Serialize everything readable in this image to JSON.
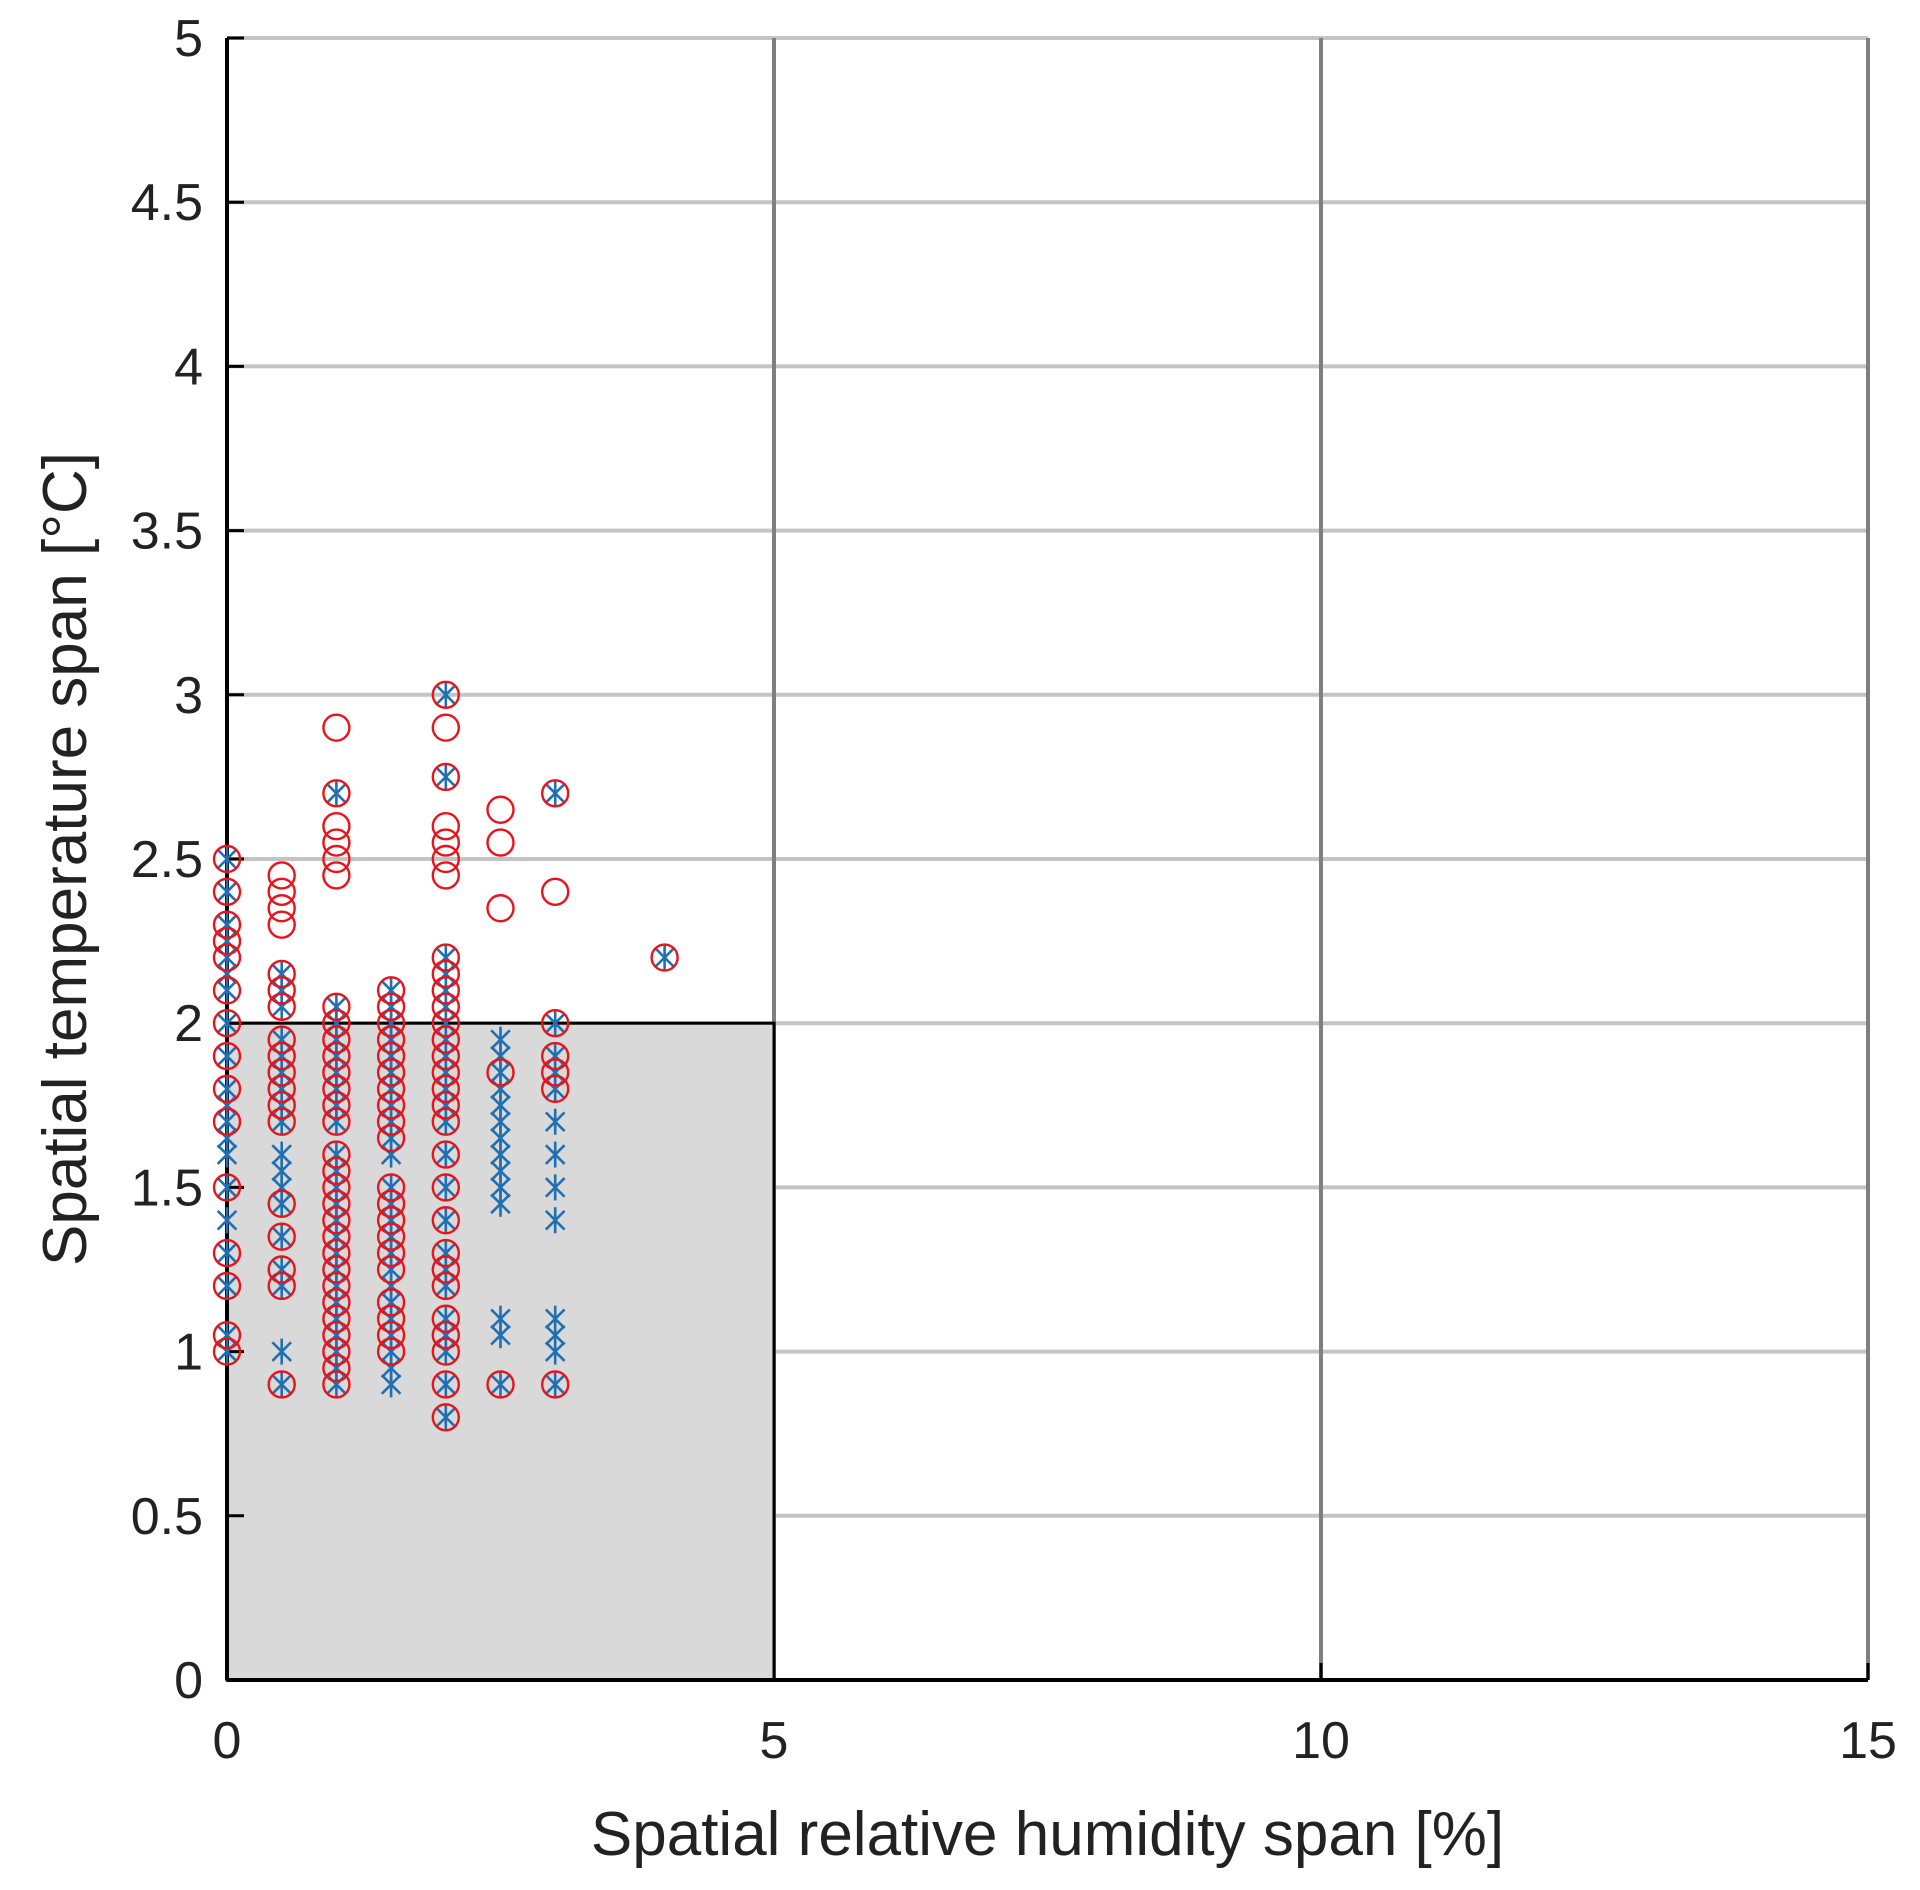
{
  "chart_data": {
    "type": "scatter",
    "title": "",
    "xlabel": "Spatial relative humidity span [%]",
    "ylabel": "Spatial temperature span [°C]",
    "xlim": [
      0,
      15
    ],
    "ylim": [
      0,
      5
    ],
    "x_ticks": [
      0,
      5,
      10,
      15
    ],
    "y_ticks": [
      0,
      0.5,
      1,
      1.5,
      2,
      2.5,
      3,
      3.5,
      4,
      4.5,
      5
    ],
    "x_tick_labels": [
      "0",
      "5",
      "10",
      "15"
    ],
    "y_tick_labels": [
      "0",
      "0.5",
      "1",
      "1.5",
      "2",
      "2.5",
      "3",
      "3.5",
      "4",
      "4.5",
      "5"
    ],
    "grid": true,
    "legend": "none",
    "comfort_region": {
      "x": [
        0,
        5
      ],
      "y": [
        0,
        2
      ],
      "fill": "#d9d9d9",
      "edge": "#000000"
    },
    "series": [
      {
        "marker": "star",
        "color": "#1f6fb2",
        "points": [
          [
            0,
            1.0
          ],
          [
            0,
            1.05
          ],
          [
            0,
            1.2
          ],
          [
            0,
            1.3
          ],
          [
            0,
            1.4
          ],
          [
            0,
            1.5
          ],
          [
            0,
            1.6
          ],
          [
            0,
            1.65
          ],
          [
            0,
            1.7
          ],
          [
            0,
            1.75
          ],
          [
            0,
            1.8
          ],
          [
            0,
            1.9
          ],
          [
            0,
            2.0
          ],
          [
            0,
            2.1
          ],
          [
            0,
            2.15
          ],
          [
            0,
            2.2
          ],
          [
            0,
            2.25
          ],
          [
            0,
            2.3
          ],
          [
            0,
            2.4
          ],
          [
            0,
            2.5
          ],
          [
            0.5,
            0.9
          ],
          [
            0.5,
            1.0
          ],
          [
            0.5,
            1.2
          ],
          [
            0.5,
            1.25
          ],
          [
            0.5,
            1.35
          ],
          [
            0.5,
            1.45
          ],
          [
            0.5,
            1.5
          ],
          [
            0.5,
            1.55
          ],
          [
            0.5,
            1.6
          ],
          [
            0.5,
            1.7
          ],
          [
            0.5,
            1.75
          ],
          [
            0.5,
            1.8
          ],
          [
            0.5,
            1.85
          ],
          [
            0.5,
            1.9
          ],
          [
            0.5,
            1.95
          ],
          [
            0.5,
            2.05
          ],
          [
            0.5,
            2.1
          ],
          [
            0.5,
            2.15
          ],
          [
            1,
            0.9
          ],
          [
            1,
            0.95
          ],
          [
            1,
            1.0
          ],
          [
            1,
            1.05
          ],
          [
            1,
            1.1
          ],
          [
            1,
            1.15
          ],
          [
            1,
            1.2
          ],
          [
            1,
            1.25
          ],
          [
            1,
            1.3
          ],
          [
            1,
            1.35
          ],
          [
            1,
            1.4
          ],
          [
            1,
            1.45
          ],
          [
            1,
            1.5
          ],
          [
            1,
            1.55
          ],
          [
            1,
            1.6
          ],
          [
            1,
            1.7
          ],
          [
            1,
            1.75
          ],
          [
            1,
            1.8
          ],
          [
            1,
            1.85
          ],
          [
            1,
            1.9
          ],
          [
            1,
            1.95
          ],
          [
            1,
            2.0
          ],
          [
            1,
            2.05
          ],
          [
            1,
            2.7
          ],
          [
            1.5,
            0.9
          ],
          [
            1.5,
            0.95
          ],
          [
            1.5,
            1.0
          ],
          [
            1.5,
            1.05
          ],
          [
            1.5,
            1.1
          ],
          [
            1.5,
            1.15
          ],
          [
            1.5,
            1.2
          ],
          [
            1.5,
            1.25
          ],
          [
            1.5,
            1.3
          ],
          [
            1.5,
            1.35
          ],
          [
            1.5,
            1.4
          ],
          [
            1.5,
            1.45
          ],
          [
            1.5,
            1.5
          ],
          [
            1.5,
            1.6
          ],
          [
            1.5,
            1.65
          ],
          [
            1.5,
            1.7
          ],
          [
            1.5,
            1.75
          ],
          [
            1.5,
            1.8
          ],
          [
            1.5,
            1.85
          ],
          [
            1.5,
            1.9
          ],
          [
            1.5,
            1.95
          ],
          [
            1.5,
            2.0
          ],
          [
            1.5,
            2.05
          ],
          [
            1.5,
            2.1
          ],
          [
            2,
            0.8
          ],
          [
            2,
            0.9
          ],
          [
            2,
            1.0
          ],
          [
            2,
            1.05
          ],
          [
            2,
            1.1
          ],
          [
            2,
            1.2
          ],
          [
            2,
            1.25
          ],
          [
            2,
            1.3
          ],
          [
            2,
            1.4
          ],
          [
            2,
            1.5
          ],
          [
            2,
            1.6
          ],
          [
            2,
            1.7
          ],
          [
            2,
            1.75
          ],
          [
            2,
            1.8
          ],
          [
            2,
            1.85
          ],
          [
            2,
            1.9
          ],
          [
            2,
            1.95
          ],
          [
            2,
            2.0
          ],
          [
            2,
            2.05
          ],
          [
            2,
            2.1
          ],
          [
            2,
            2.15
          ],
          [
            2,
            2.2
          ],
          [
            2,
            2.75
          ],
          [
            2,
            3.0
          ],
          [
            2.5,
            0.9
          ],
          [
            2.5,
            1.05
          ],
          [
            2.5,
            1.1
          ],
          [
            2.5,
            1.45
          ],
          [
            2.5,
            1.5
          ],
          [
            2.5,
            1.55
          ],
          [
            2.5,
            1.6
          ],
          [
            2.5,
            1.65
          ],
          [
            2.5,
            1.7
          ],
          [
            2.5,
            1.75
          ],
          [
            2.5,
            1.8
          ],
          [
            2.5,
            1.85
          ],
          [
            2.5,
            1.9
          ],
          [
            2.5,
            1.95
          ],
          [
            3,
            0.9
          ],
          [
            3,
            1.0
          ],
          [
            3,
            1.05
          ],
          [
            3,
            1.1
          ],
          [
            3,
            1.4
          ],
          [
            3,
            1.5
          ],
          [
            3,
            1.6
          ],
          [
            3,
            1.7
          ],
          [
            3,
            1.8
          ],
          [
            3,
            1.85
          ],
          [
            3,
            1.9
          ],
          [
            3,
            2.0
          ],
          [
            3,
            2.7
          ],
          [
            4,
            2.2
          ]
        ]
      },
      {
        "marker": "circle",
        "color": "#e8141c",
        "points": [
          [
            0,
            1.0
          ],
          [
            0,
            1.05
          ],
          [
            0,
            1.2
          ],
          [
            0,
            1.3
          ],
          [
            0,
            1.5
          ],
          [
            0,
            1.7
          ],
          [
            0,
            1.8
          ],
          [
            0,
            1.9
          ],
          [
            0,
            2.0
          ],
          [
            0,
            2.1
          ],
          [
            0,
            2.2
          ],
          [
            0,
            2.25
          ],
          [
            0,
            2.3
          ],
          [
            0,
            2.4
          ],
          [
            0,
            2.5
          ],
          [
            0.5,
            0.9
          ],
          [
            0.5,
            1.2
          ],
          [
            0.5,
            1.25
          ],
          [
            0.5,
            1.35
          ],
          [
            0.5,
            1.45
          ],
          [
            0.5,
            1.7
          ],
          [
            0.5,
            1.75
          ],
          [
            0.5,
            1.8
          ],
          [
            0.5,
            1.85
          ],
          [
            0.5,
            1.9
          ],
          [
            0.5,
            1.95
          ],
          [
            0.5,
            2.05
          ],
          [
            0.5,
            2.1
          ],
          [
            0.5,
            2.15
          ],
          [
            0.5,
            2.3
          ],
          [
            0.5,
            2.35
          ],
          [
            0.5,
            2.4
          ],
          [
            0.5,
            2.45
          ],
          [
            1,
            0.9
          ],
          [
            1,
            0.95
          ],
          [
            1,
            1.0
          ],
          [
            1,
            1.05
          ],
          [
            1,
            1.1
          ],
          [
            1,
            1.15
          ],
          [
            1,
            1.2
          ],
          [
            1,
            1.25
          ],
          [
            1,
            1.3
          ],
          [
            1,
            1.35
          ],
          [
            1,
            1.4
          ],
          [
            1,
            1.45
          ],
          [
            1,
            1.5
          ],
          [
            1,
            1.55
          ],
          [
            1,
            1.6
          ],
          [
            1,
            1.7
          ],
          [
            1,
            1.75
          ],
          [
            1,
            1.8
          ],
          [
            1,
            1.85
          ],
          [
            1,
            1.9
          ],
          [
            1,
            1.95
          ],
          [
            1,
            2.0
          ],
          [
            1,
            2.05
          ],
          [
            1,
            2.45
          ],
          [
            1,
            2.5
          ],
          [
            1,
            2.55
          ],
          [
            1,
            2.6
          ],
          [
            1,
            2.7
          ],
          [
            1,
            2.9
          ],
          [
            1.5,
            1.0
          ],
          [
            1.5,
            1.05
          ],
          [
            1.5,
            1.1
          ],
          [
            1.5,
            1.15
          ],
          [
            1.5,
            1.25
          ],
          [
            1.5,
            1.3
          ],
          [
            1.5,
            1.35
          ],
          [
            1.5,
            1.4
          ],
          [
            1.5,
            1.45
          ],
          [
            1.5,
            1.5
          ],
          [
            1.5,
            1.65
          ],
          [
            1.5,
            1.7
          ],
          [
            1.5,
            1.75
          ],
          [
            1.5,
            1.8
          ],
          [
            1.5,
            1.85
          ],
          [
            1.5,
            1.9
          ],
          [
            1.5,
            1.95
          ],
          [
            1.5,
            2.0
          ],
          [
            1.5,
            2.05
          ],
          [
            1.5,
            2.1
          ],
          [
            2,
            0.8
          ],
          [
            2,
            0.9
          ],
          [
            2,
            1.0
          ],
          [
            2,
            1.05
          ],
          [
            2,
            1.1
          ],
          [
            2,
            1.2
          ],
          [
            2,
            1.25
          ],
          [
            2,
            1.3
          ],
          [
            2,
            1.4
          ],
          [
            2,
            1.5
          ],
          [
            2,
            1.6
          ],
          [
            2,
            1.7
          ],
          [
            2,
            1.75
          ],
          [
            2,
            1.8
          ],
          [
            2,
            1.85
          ],
          [
            2,
            1.9
          ],
          [
            2,
            1.95
          ],
          [
            2,
            2.0
          ],
          [
            2,
            2.05
          ],
          [
            2,
            2.1
          ],
          [
            2,
            2.15
          ],
          [
            2,
            2.2
          ],
          [
            2,
            2.45
          ],
          [
            2,
            2.5
          ],
          [
            2,
            2.55
          ],
          [
            2,
            2.6
          ],
          [
            2,
            2.75
          ],
          [
            2,
            2.9
          ],
          [
            2,
            3.0
          ],
          [
            2.5,
            0.9
          ],
          [
            2.5,
            1.85
          ],
          [
            2.5,
            2.35
          ],
          [
            2.5,
            2.55
          ],
          [
            2.5,
            2.65
          ],
          [
            3,
            0.9
          ],
          [
            3,
            1.8
          ],
          [
            3,
            1.85
          ],
          [
            3,
            1.9
          ],
          [
            3,
            2.0
          ],
          [
            3,
            2.4
          ],
          [
            3,
            2.7
          ],
          [
            4,
            2.2
          ]
        ]
      }
    ]
  }
}
